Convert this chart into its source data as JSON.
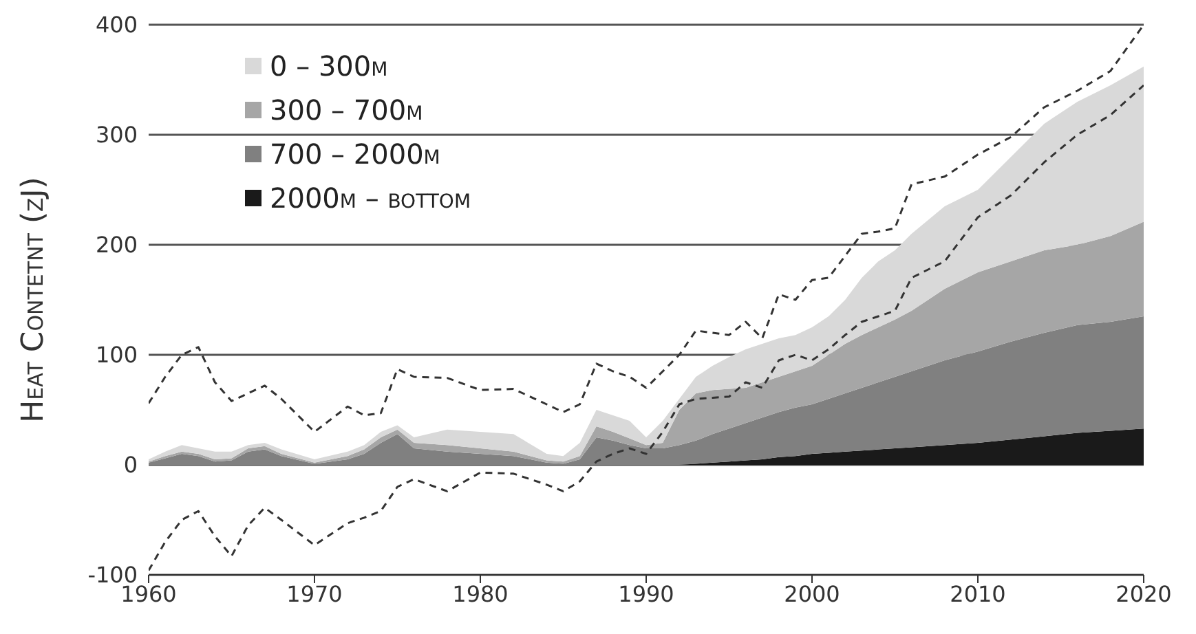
{
  "chart_data": {
    "type": "area",
    "stacked": true,
    "ylabel": "Heat Contetnt (zJ)",
    "xlim": [
      1960,
      2020
    ],
    "xticks": [
      1960,
      1970,
      1980,
      1990,
      2000,
      2010,
      2020
    ],
    "ylim": [
      -100,
      400
    ],
    "yticks": [
      -100,
      0,
      100,
      200,
      300,
      400
    ],
    "grid": "y",
    "legend": "top left",
    "x": [
      1960,
      1961,
      1962,
      1963,
      1964,
      1965,
      1966,
      1967,
      1968,
      1970,
      1972,
      1973,
      1974,
      1975,
      1976,
      1978,
      1980,
      1982,
      1984,
      1985,
      1986,
      1987,
      1988,
      1989,
      1990,
      1991,
      1992,
      1993,
      1994,
      1995,
      1996,
      1997,
      1998,
      1999,
      2000,
      2001,
      2002,
      2003,
      2004,
      2005,
      2006,
      2008,
      2010,
      2012,
      2014,
      2016,
      2018,
      2020
    ],
    "series": [
      {
        "name": "2000m – bottom",
        "color": "#1a1a1a",
        "values": [
          0,
          0,
          0,
          0,
          0,
          0,
          0,
          0,
          0,
          0,
          0,
          0,
          0,
          0,
          0,
          0,
          0,
          0,
          0,
          0,
          0,
          0,
          0,
          0,
          0,
          0,
          0,
          1,
          2,
          3,
          4,
          5,
          7,
          8,
          10,
          11,
          12,
          13,
          14,
          15,
          16,
          18,
          20,
          23,
          26,
          29,
          31,
          33
        ]
      },
      {
        "name": "700 – 2000m",
        "color": "#808080",
        "values": [
          2,
          6,
          10,
          8,
          3,
          4,
          12,
          14,
          8,
          1,
          5,
          10,
          20,
          28,
          15,
          12,
          10,
          8,
          2,
          1,
          5,
          25,
          22,
          18,
          15,
          15,
          18,
          21,
          26,
          30,
          34,
          38,
          41,
          44,
          45,
          49,
          53,
          57,
          61,
          65,
          69,
          77,
          83,
          89,
          94,
          98,
          99,
          102
        ]
      },
      {
        "name": "300 – 700m",
        "color": "#a6a6a6",
        "values": [
          1,
          2,
          2,
          2,
          2,
          2,
          3,
          3,
          2,
          1,
          3,
          4,
          5,
          4,
          5,
          6,
          5,
          4,
          2,
          2,
          3,
          10,
          8,
          6,
          3,
          5,
          32,
          43,
          40,
          36,
          32,
          32,
          32,
          33,
          35,
          40,
          45,
          48,
          50,
          52,
          55,
          65,
          72,
          73,
          75,
          73,
          78,
          86
        ]
      },
      {
        "name": "0 – 300m",
        "color": "#d9d9d9",
        "values": [
          2,
          4,
          6,
          5,
          7,
          6,
          3,
          3,
          4,
          3,
          4,
          4,
          5,
          4,
          5,
          14,
          15,
          16,
          6,
          5,
          12,
          15,
          15,
          16,
          7,
          20,
          10,
          15,
          22,
          29,
          35,
          35,
          35,
          33,
          35,
          35,
          40,
          52,
          60,
          63,
          70,
          75,
          75,
          95,
          115,
          130,
          137,
          141
        ]
      },
      {
        "type": "line",
        "line_style": "dashed",
        "color": "#333333",
        "values": [
          56,
          80,
          100,
          107,
          75,
          58,
          65,
          72,
          60,
          30,
          53,
          45,
          47,
          87,
          80,
          79,
          68,
          69,
          55,
          48,
          55,
          92,
          85,
          80,
          70,
          85,
          100,
          122,
          120,
          118,
          130,
          115,
          155,
          150,
          168,
          170,
          190,
          210,
          212,
          215,
          255,
          262,
          282,
          298,
          325,
          340,
          358,
          400
        ]
      },
      {
        "type": "line",
        "line_style": "dashed",
        "color": "#333333",
        "values": [
          -96,
          -70,
          -50,
          -42,
          -65,
          -83,
          -55,
          -39,
          -50,
          -73,
          -53,
          -48,
          -42,
          -20,
          -13,
          -24,
          -7,
          -8,
          -18,
          -24,
          -15,
          3,
          10,
          15,
          10,
          30,
          55,
          60,
          61,
          62,
          75,
          70,
          95,
          100,
          95,
          105,
          118,
          130,
          135,
          140,
          170,
          185,
          225,
          245,
          275,
          300,
          318,
          345
        ]
      }
    ]
  }
}
